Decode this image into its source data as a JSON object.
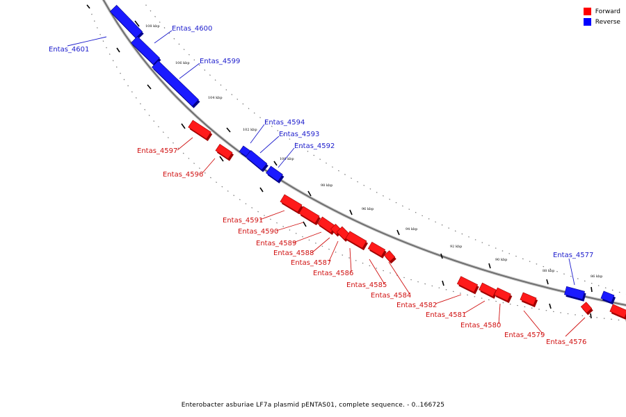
{
  "legend": {
    "forward_label": "Forward",
    "reverse_label": "Reverse",
    "forward_color": "#ff0000",
    "reverse_color": "#0000ff"
  },
  "caption": "Enterobacter asburiae LF7a plasmid pENTAS01, complete sequence. - 0..166725",
  "scale": {
    "tick_labels": [
      "108 kbp",
      "106 kbp",
      "104 kbp",
      "102 kbp",
      "100 kbp",
      "98 kbp",
      "96 kbp",
      "94 kbp",
      "92 kbp",
      "90 kbp",
      "88 kbp",
      "86 kbp"
    ]
  },
  "genes": {
    "reverse": [
      "Entas_4601",
      "Entas_4600",
      "Entas_4599",
      "Entas_4594",
      "Entas_4593",
      "Entas_4592",
      "Entas_4577"
    ],
    "forward": [
      "Entas_4597",
      "Entas_4596",
      "Entas_4591",
      "Entas_4590",
      "Entas_4589",
      "Entas_4588",
      "Entas_4587",
      "Entas_4586",
      "Entas_4585",
      "Entas_4584",
      "Entas_4582",
      "Entas_4581",
      "Entas_4580",
      "Entas_4579",
      "Entas_4576"
    ]
  }
}
